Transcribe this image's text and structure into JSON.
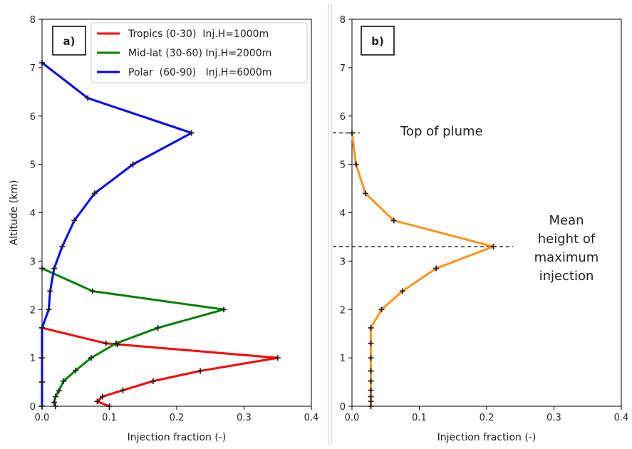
{
  "chart_data": [
    {
      "type": "line",
      "panel_label": "a)",
      "xlabel": "Injection fraction (-)",
      "ylabel": "Altitude (km)",
      "xlim": [
        0,
        0.4
      ],
      "ylim": [
        0,
        8
      ],
      "xticks": [
        "0.0",
        "0.1",
        "0.2",
        "0.3",
        "0.4"
      ],
      "yticks": [
        "0",
        "1",
        "2",
        "3",
        "4",
        "5",
        "6",
        "7",
        "8"
      ],
      "grid": false,
      "legend_position": "top-right",
      "series": [
        {
          "name": "Tropics (0-30)  Inj.H=1000m",
          "color": "#ff0000",
          "points": [
            [
              0.1,
              0.0
            ],
            [
              0.082,
              0.1
            ],
            [
              0.09,
              0.2
            ],
            [
              0.12,
              0.33
            ],
            [
              0.165,
              0.52
            ],
            [
              0.235,
              0.73
            ],
            [
              0.35,
              1.0
            ],
            [
              0.112,
              1.28
            ],
            [
              0.095,
              1.3
            ],
            [
              0.0,
              1.62
            ]
          ]
        },
        {
          "name": "Mid-lat (30-60) Inj.H=2000m",
          "color": "#008000",
          "points": [
            [
              0.02,
              0.0
            ],
            [
              0.018,
              0.08
            ],
            [
              0.02,
              0.2
            ],
            [
              0.025,
              0.32
            ],
            [
              0.032,
              0.52
            ],
            [
              0.05,
              0.74
            ],
            [
              0.073,
              1.0
            ],
            [
              0.11,
              1.3
            ],
            [
              0.172,
              1.62
            ],
            [
              0.27,
              2.0
            ],
            [
              0.075,
              2.38
            ],
            [
              0.0,
              2.85
            ]
          ]
        },
        {
          "name": "Polar  (60-90)   Inj.H=6000m",
          "color": "#0000ff",
          "points": [
            [
              0.0,
              0.0
            ],
            [
              0.0,
              0.5
            ],
            [
              0.0,
              1.0
            ],
            [
              0.0,
              1.62
            ],
            [
              0.01,
              2.0
            ],
            [
              0.012,
              2.38
            ],
            [
              0.018,
              2.85
            ],
            [
              0.03,
              3.3
            ],
            [
              0.048,
              3.84
            ],
            [
              0.078,
              4.4
            ],
            [
              0.135,
              5.0
            ],
            [
              0.222,
              5.65
            ],
            [
              0.068,
              6.37
            ],
            [
              0.0,
              7.1
            ]
          ]
        }
      ]
    },
    {
      "type": "line",
      "panel_label": "b)",
      "xlabel": "Injection fraction (-)",
      "ylabel": "",
      "xlim": [
        0,
        0.4
      ],
      "ylim": [
        0,
        8
      ],
      "xticks": [
        "0.0",
        "0.1",
        "0.2",
        "0.3",
        "0.4"
      ],
      "yticks": [
        "0",
        "1",
        "2",
        "3",
        "4",
        "5",
        "6",
        "7",
        "8"
      ],
      "grid": false,
      "series": [
        {
          "color": "#ff9320",
          "points": [
            [
              0.028,
              0.0
            ],
            [
              0.028,
              0.1
            ],
            [
              0.028,
              0.2
            ],
            [
              0.028,
              0.33
            ],
            [
              0.028,
              0.52
            ],
            [
              0.028,
              0.73
            ],
            [
              0.028,
              1.0
            ],
            [
              0.028,
              1.3
            ],
            [
              0.028,
              1.62
            ],
            [
              0.044,
              2.0
            ],
            [
              0.075,
              2.38
            ],
            [
              0.125,
              2.85
            ],
            [
              0.21,
              3.3
            ],
            [
              0.062,
              3.84
            ],
            [
              0.02,
              4.4
            ],
            [
              0.006,
              5.0
            ],
            [
              0.0,
              5.65
            ]
          ]
        }
      ],
      "reference_lines": [
        {
          "y": 5.65,
          "label": "Top of plume"
        },
        {
          "y": 3.3,
          "label": "Mean height of maximum injection"
        }
      ],
      "annotations": {
        "top": "Top of plume",
        "mean_lines": [
          "Mean",
          "height of",
          "maximum",
          "injection"
        ]
      }
    }
  ]
}
